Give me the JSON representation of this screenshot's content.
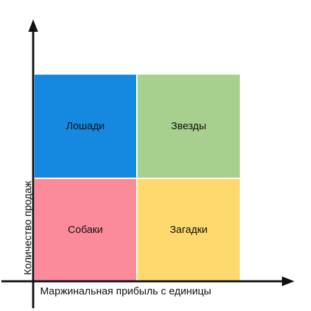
{
  "colors": {
    "horses": "#1589e0",
    "stars": "#a7cf8e",
    "dogs": "#fb8a9a",
    "puzzles": "#fed96d",
    "axis": "#111111"
  },
  "quadrants": {
    "top_left": "Лошади",
    "top_right": "Звезды",
    "bottom_left": "Собаки",
    "bottom_right": "Загадки"
  },
  "axes": {
    "x_label": "Маржинальная прибыль с единицы",
    "y_label": "Количество продаж"
  }
}
